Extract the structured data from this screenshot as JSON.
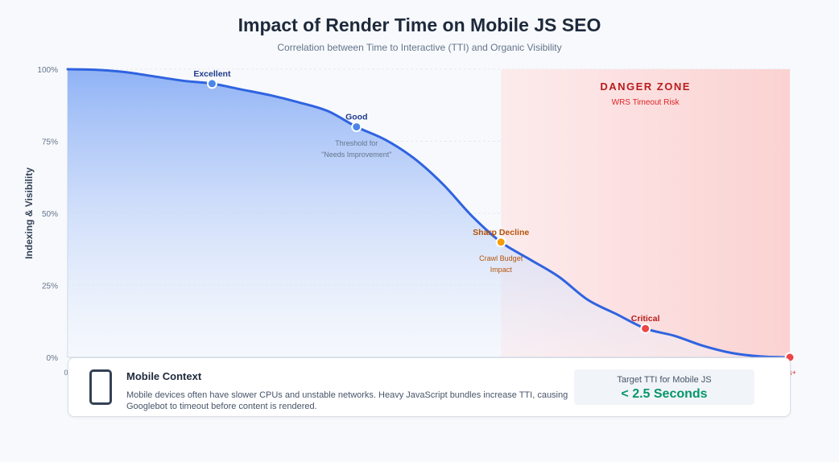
{
  "header": {
    "title": "Impact of Render Time on Mobile JS SEO",
    "subtitle": "Correlation between Time to Interactive (TTI) and Organic Visibility"
  },
  "chart_data": {
    "type": "area",
    "ylabel": "Indexing & Visibility",
    "y_ticks": [
      "100%",
      "75%",
      "50%",
      "25%",
      "0%"
    ],
    "x_ticks_visible": [
      "0",
      "s+"
    ],
    "ylim": [
      0,
      100
    ],
    "xlim": [
      0,
      1
    ],
    "grid": true,
    "curve": {
      "x": [
        0,
        0.04,
        0.08,
        0.12,
        0.16,
        0.2,
        0.24,
        0.28,
        0.32,
        0.36,
        0.4,
        0.44,
        0.48,
        0.52,
        0.56,
        0.6,
        0.64,
        0.68,
        0.72,
        0.76,
        0.8,
        0.84,
        0.88,
        0.92,
        0.96,
        1.0
      ],
      "y": [
        100,
        99.8,
        99,
        97.5,
        96,
        95,
        93,
        91,
        88.5,
        85.5,
        80,
        75.5,
        69,
        60,
        49,
        40,
        34,
        28,
        20,
        15,
        10,
        7.5,
        4,
        1.5,
        0.3,
        0
      ]
    },
    "points": [
      {
        "label": "Excellent",
        "x": 0.2,
        "y": 95,
        "color": "#4a86e8",
        "label_color": "#1e3a8a"
      },
      {
        "label": "Good",
        "x": 0.4,
        "y": 80,
        "color": "#4a86e8",
        "label_color": "#1e3a8a"
      },
      {
        "label": "Sharp Decline",
        "x": 0.6,
        "y": 40,
        "color": "#f59e0b",
        "label_color": "#b45309"
      },
      {
        "label": "Critical",
        "x": 0.8,
        "y": 10,
        "color": "#ef4444",
        "label_color": "#b91c1c"
      },
      {
        "label": "",
        "x": 1.0,
        "y": 0,
        "color": "#ef4444",
        "label_color": "#b91c1c"
      }
    ],
    "annotations": [
      {
        "lines": [
          "Threshold for",
          "\"Needs Improvement\""
        ],
        "x": 0.4,
        "y": 73.5,
        "color": "#64748b"
      },
      {
        "lines": [
          "Crawl Budget",
          "Impact"
        ],
        "x": 0.6,
        "y": 33.5,
        "color": "#b45309"
      }
    ],
    "danger_zone": {
      "x_start": 0.6,
      "x_end": 1.0,
      "title": "DANGER ZONE",
      "subtitle": "WRS Timeout Risk",
      "title_color": "#b91c1c",
      "subtitle_color": "#dc2626"
    },
    "colors": {
      "line": "#2f63e0",
      "fill_top": "#8fb2f5",
      "fill_bottom": "#f2f6fe",
      "danger_left": "#fcebec",
      "danger_right": "#fbd2d2"
    }
  },
  "card": {
    "icon": "phone-icon",
    "title": "Mobile Context",
    "text": "Mobile devices often have slower CPUs and unstable networks. Heavy JavaScript bundles increase TTI, causing Googlebot to timeout before content is rendered.",
    "target_label": "Target TTI for Mobile JS",
    "target_value": "< 2.5 Seconds"
  }
}
